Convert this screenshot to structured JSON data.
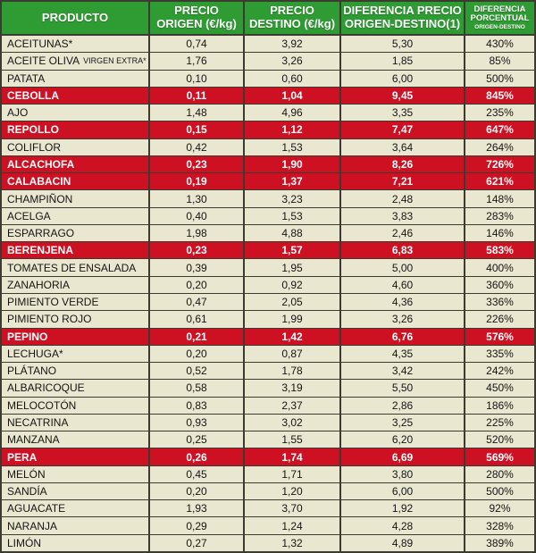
{
  "colors": {
    "header_green": "#2f9b33",
    "highlight_red": "#cd1123",
    "row_cream": "#eae7d0",
    "border_dark": "#3b3b31"
  },
  "chart_data": {
    "type": "table",
    "title": "",
    "columns": [
      "PRODUCTO",
      "PRECIO ORIGEN (€/kg)",
      "PRECIO DESTINO (€/kg)",
      "DIFERENCIA PRECIO ORIGEN-DESTINO(1)",
      "DIFERENCIA PORCENTUAL ORIGEN-DESTINO"
    ],
    "header": {
      "product": "PRODUCTO",
      "origin_line1": "PRECIO",
      "origin_line2": "ORIGEN (€/kg)",
      "dest_line1": "PRECIO",
      "dest_line2": "DESTINO (€/kg)",
      "diff_line1": "DIFERENCIA PRECIO",
      "diff_line2": "ORIGEN-DESTINO(1)",
      "pct_line1": "DIFERENCIA",
      "pct_line2": "PORCENTUAL",
      "pct_line3": "ORIGEN-DESTINO"
    },
    "rows": [
      {
        "product": "ACEITUNAS*",
        "suffix": "",
        "origen": "0,74",
        "destino": "3,92",
        "diferencia": "5,30",
        "porcentual": "430%",
        "highlight": false
      },
      {
        "product": "ACEITE OLIVA",
        "suffix": "VIRGEN EXTRA*",
        "origen": "1,76",
        "destino": "3,26",
        "diferencia": "1,85",
        "porcentual": "85%",
        "highlight": false
      },
      {
        "product": "PATATA",
        "suffix": "",
        "origen": "0,10",
        "destino": "0,60",
        "diferencia": "6,00",
        "porcentual": "500%",
        "highlight": false
      },
      {
        "product": "CEBOLLA",
        "suffix": "",
        "origen": "0,11",
        "destino": "1,04",
        "diferencia": "9,45",
        "porcentual": "845%",
        "highlight": true
      },
      {
        "product": "AJO",
        "suffix": "",
        "origen": "1,48",
        "destino": "4,96",
        "diferencia": "3,35",
        "porcentual": "235%",
        "highlight": false
      },
      {
        "product": "REPOLLO",
        "suffix": "",
        "origen": "0,15",
        "destino": "1,12",
        "diferencia": "7,47",
        "porcentual": "647%",
        "highlight": true
      },
      {
        "product": "COLIFLOR",
        "suffix": "",
        "origen": "0,42",
        "destino": "1,53",
        "diferencia": "3,64",
        "porcentual": "264%",
        "highlight": false
      },
      {
        "product": "ALCACHOFA",
        "suffix": "",
        "origen": "0,23",
        "destino": "1,90",
        "diferencia": "8,26",
        "porcentual": "726%",
        "highlight": true
      },
      {
        "product": "CALABACIN",
        "suffix": "",
        "origen": "0,19",
        "destino": "1,37",
        "diferencia": "7,21",
        "porcentual": "621%",
        "highlight": true
      },
      {
        "product": "CHAMPIÑON",
        "suffix": "",
        "origen": "1,30",
        "destino": "3,23",
        "diferencia": "2,48",
        "porcentual": "148%",
        "highlight": false
      },
      {
        "product": "ACELGA",
        "suffix": "",
        "origen": "0,40",
        "destino": "1,53",
        "diferencia": "3,83",
        "porcentual": "283%",
        "highlight": false
      },
      {
        "product": "ESPARRAGO",
        "suffix": "",
        "origen": "1,98",
        "destino": "4,88",
        "diferencia": "2,46",
        "porcentual": "146%",
        "highlight": false
      },
      {
        "product": "BERENJENA",
        "suffix": "",
        "origen": "0,23",
        "destino": "1,57",
        "diferencia": "6,83",
        "porcentual": "583%",
        "highlight": true
      },
      {
        "product": "TOMATES DE ENSALADA",
        "suffix": "",
        "origen": "0,39",
        "destino": "1,95",
        "diferencia": "5,00",
        "porcentual": "400%",
        "highlight": false
      },
      {
        "product": "ZANAHORIA",
        "suffix": "",
        "origen": "0,20",
        "destino": "0,92",
        "diferencia": "4,60",
        "porcentual": "360%",
        "highlight": false
      },
      {
        "product": "PIMIENTO VERDE",
        "suffix": "",
        "origen": "0,47",
        "destino": "2,05",
        "diferencia": "4,36",
        "porcentual": "336%",
        "highlight": false
      },
      {
        "product": "PIMIENTO ROJO",
        "suffix": "",
        "origen": "0,61",
        "destino": "1,99",
        "diferencia": "3,26",
        "porcentual": "226%",
        "highlight": false
      },
      {
        "product": "PEPINO",
        "suffix": "",
        "origen": "0,21",
        "destino": "1,42",
        "diferencia": "6,76",
        "porcentual": "576%",
        "highlight": true
      },
      {
        "product": "LECHUGA*",
        "suffix": "",
        "origen": "0,20",
        "destino": "0,87",
        "diferencia": "4,35",
        "porcentual": "335%",
        "highlight": false
      },
      {
        "product": "PLÁTANO",
        "suffix": "",
        "origen": "0,52",
        "destino": "1,78",
        "diferencia": "3,42",
        "porcentual": "242%",
        "highlight": false
      },
      {
        "product": "ALBARICOQUE",
        "suffix": "",
        "origen": "0,58",
        "destino": "3,19",
        "diferencia": "5,50",
        "porcentual": "450%",
        "highlight": false
      },
      {
        "product": "MELOCOTÓN",
        "suffix": "",
        "origen": "0,83",
        "destino": "2,37",
        "diferencia": "2,86",
        "porcentual": "186%",
        "highlight": false
      },
      {
        "product": "NECATRINA",
        "suffix": "",
        "origen": "0,93",
        "destino": "3,02",
        "diferencia": "3,25",
        "porcentual": "225%",
        "highlight": false
      },
      {
        "product": "MANZANA",
        "suffix": "",
        "origen": "0,25",
        "destino": "1,55",
        "diferencia": "6,20",
        "porcentual": "520%",
        "highlight": false
      },
      {
        "product": "PERA",
        "suffix": "",
        "origen": "0,26",
        "destino": "1,74",
        "diferencia": "6,69",
        "porcentual": "569%",
        "highlight": true
      },
      {
        "product": "MELÓN",
        "suffix": "",
        "origen": "0,45",
        "destino": "1,71",
        "diferencia": "3,80",
        "porcentual": "280%",
        "highlight": false
      },
      {
        "product": "SANDÍA",
        "suffix": "",
        "origen": "0,20",
        "destino": "1,20",
        "diferencia": "6,00",
        "porcentual": "500%",
        "highlight": false
      },
      {
        "product": "AGUACATE",
        "suffix": "",
        "origen": "1,93",
        "destino": "3,70",
        "diferencia": "1,92",
        "porcentual": "92%",
        "highlight": false
      },
      {
        "product": "NARANJA",
        "suffix": "",
        "origen": "0,29",
        "destino": "1,24",
        "diferencia": "4,28",
        "porcentual": "328%",
        "highlight": false
      },
      {
        "product": "LIMÓN",
        "suffix": "",
        "origen": "0,27",
        "destino": "1,32",
        "diferencia": "4,89",
        "porcentual": "389%",
        "highlight": false
      }
    ]
  }
}
